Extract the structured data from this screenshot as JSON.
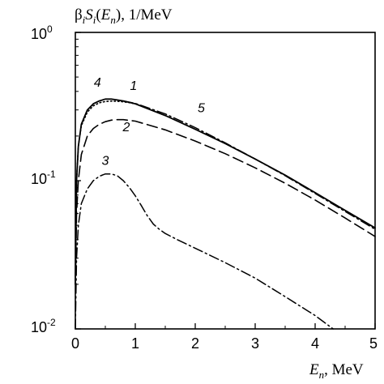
{
  "chart_data": {
    "type": "line",
    "ylabel": "β_i S_i(E_n), 1/MeV",
    "ylabel_parts": {
      "beta": "β",
      "i": "i",
      "S": "S",
      "open": "(",
      "E": "E",
      "n": "n",
      "close": ")",
      "unit": ", 1/MeV"
    },
    "xlabel": "E_n, MeV",
    "xlabel_parts": {
      "E": "E",
      "n": "n",
      "unit": ", MeV"
    },
    "xlim": [
      0,
      5
    ],
    "ylim": [
      0.01,
      1
    ],
    "yscale": "log",
    "grid": false,
    "legend": "none",
    "x_ticks": [
      "0",
      "1",
      "2",
      "3",
      "4",
      "5"
    ],
    "y_ticks": [
      {
        "base": "10",
        "exp": "0"
      },
      {
        "base": "10",
        "exp": "-1"
      },
      {
        "base": "10",
        "exp": "-2"
      }
    ],
    "series": [
      {
        "label": "1",
        "style": "solid",
        "x": [
          0,
          0.02,
          0.05,
          0.1,
          0.2,
          0.3,
          0.4,
          0.5,
          0.6,
          0.7,
          0.8,
          1.0,
          1.5,
          2.0,
          2.5,
          3.0,
          3.5,
          4.0,
          4.5,
          5.0
        ],
        "y": [
          0.02,
          0.1,
          0.17,
          0.24,
          0.3,
          0.33,
          0.345,
          0.355,
          0.355,
          0.35,
          0.345,
          0.33,
          0.275,
          0.222,
          0.178,
          0.14,
          0.109,
          0.083,
          0.063,
          0.048
        ]
      },
      {
        "label": "2",
        "style": "dash",
        "x": [
          0,
          0.02,
          0.05,
          0.1,
          0.2,
          0.3,
          0.4,
          0.5,
          0.6,
          0.7,
          0.8,
          1.0,
          1.5,
          2.0,
          2.5,
          3.0,
          3.5,
          4.0,
          4.5,
          5.0
        ],
        "y": [
          0.02,
          0.06,
          0.1,
          0.15,
          0.2,
          0.225,
          0.24,
          0.25,
          0.256,
          0.258,
          0.258,
          0.252,
          0.22,
          0.185,
          0.152,
          0.122,
          0.096,
          0.074,
          0.056,
          0.042
        ]
      },
      {
        "label": "3",
        "style": "dashdot",
        "x": [
          0,
          0.02,
          0.05,
          0.1,
          0.2,
          0.3,
          0.4,
          0.5,
          0.6,
          0.7,
          0.8,
          0.9,
          1.0,
          1.1,
          1.2,
          1.3,
          1.4,
          1.5,
          1.7,
          2.0,
          2.5,
          3.0,
          3.5,
          4.0,
          4.3
        ],
        "y": [
          0.01,
          0.03,
          0.05,
          0.07,
          0.088,
          0.1,
          0.107,
          0.111,
          0.111,
          0.108,
          0.1,
          0.09,
          0.079,
          0.068,
          0.058,
          0.051,
          0.047,
          0.044,
          0.04,
          0.035,
          0.028,
          0.022,
          0.0165,
          0.0123,
          0.01
        ]
      },
      {
        "label": "4",
        "style": "dotted",
        "x": [
          0,
          0.02,
          0.05,
          0.1,
          0.2,
          0.3,
          0.4,
          0.5,
          0.6,
          0.7,
          0.8,
          0.9,
          1.0
        ],
        "y": [
          0.02,
          0.1,
          0.17,
          0.235,
          0.29,
          0.32,
          0.335,
          0.342,
          0.344,
          0.343,
          0.34,
          0.336,
          0.33
        ]
      },
      {
        "label": "5",
        "style": "dashdot",
        "x": [
          0.8,
          1.0,
          1.5,
          2.0,
          2.5,
          3.0,
          3.5,
          4.0,
          4.5,
          5.0
        ],
        "y": [
          0.345,
          0.332,
          0.282,
          0.228,
          0.18,
          0.14,
          0.108,
          0.082,
          0.062,
          0.047
        ]
      }
    ],
    "curve_labels": [
      {
        "text": "4",
        "x": 0.37,
        "y": 0.43
      },
      {
        "text": "1",
        "x": 0.97,
        "y": 0.41
      },
      {
        "text": "5",
        "x": 2.1,
        "y": 0.29
      },
      {
        "text": "2",
        "x": 0.85,
        "y": 0.215
      },
      {
        "text": "3",
        "x": 0.5,
        "y": 0.128
      }
    ]
  }
}
